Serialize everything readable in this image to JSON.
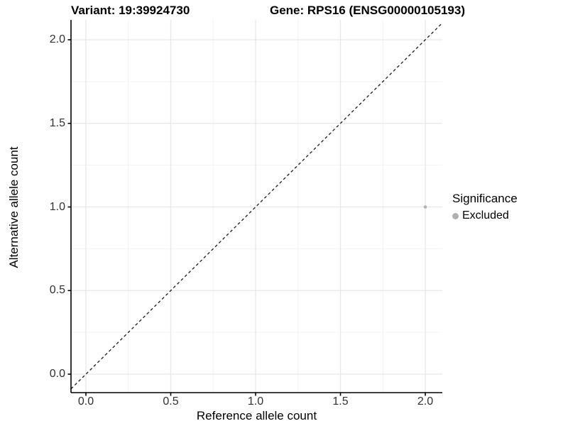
{
  "title": {
    "variant": "Variant: 19:39924730",
    "gene": "Gene: RPS16 (ENSG00000105193)"
  },
  "axes": {
    "x": {
      "label": "Reference allele count",
      "tick_labels": [
        "0.0",
        "0.5",
        "1.0",
        "1.5",
        "2.0"
      ]
    },
    "y": {
      "label": "Alternative allele count",
      "tick_labels": [
        "0.0",
        "0.5",
        "1.0",
        "1.5",
        "2.0"
      ]
    }
  },
  "legend": {
    "title": "Significance",
    "items": [
      {
        "label": "Excluded",
        "color": "#b0b0b0"
      }
    ]
  },
  "colors": {
    "point": "#b3b3b3",
    "axis_line": "#000000",
    "grid_major": "#e7e7e7",
    "grid_minor": "#f2f2f2",
    "reference_line": "#1a1a1a",
    "tick_text": "#303030"
  },
  "chart_data": {
    "type": "scatter",
    "title": "Variant: 19:39924730   Gene: RPS16 (ENSG00000105193)",
    "xlabel": "Reference allele count",
    "ylabel": "Alternative allele count",
    "xlim": [
      -0.09,
      2.19
    ],
    "ylim": [
      -0.11,
      2.11
    ],
    "x_ticks": [
      0.0,
      0.5,
      1.0,
      1.5,
      2.0
    ],
    "y_ticks": [
      0.0,
      0.5,
      1.0,
      1.5,
      2.0
    ],
    "x_minor_ticks": [
      0.25,
      0.75,
      1.25,
      1.75
    ],
    "y_minor_ticks": [
      0.25,
      0.75,
      1.25,
      1.75
    ],
    "grid": true,
    "legend_position": "right",
    "series": [
      {
        "name": "Excluded",
        "color": "#b3b3b3",
        "points": [
          {
            "x": 2.0,
            "y": 1.0
          }
        ]
      }
    ],
    "reference_line": {
      "style": "dashed",
      "equation": "y = x",
      "slope": 1,
      "intercept": 0
    }
  }
}
